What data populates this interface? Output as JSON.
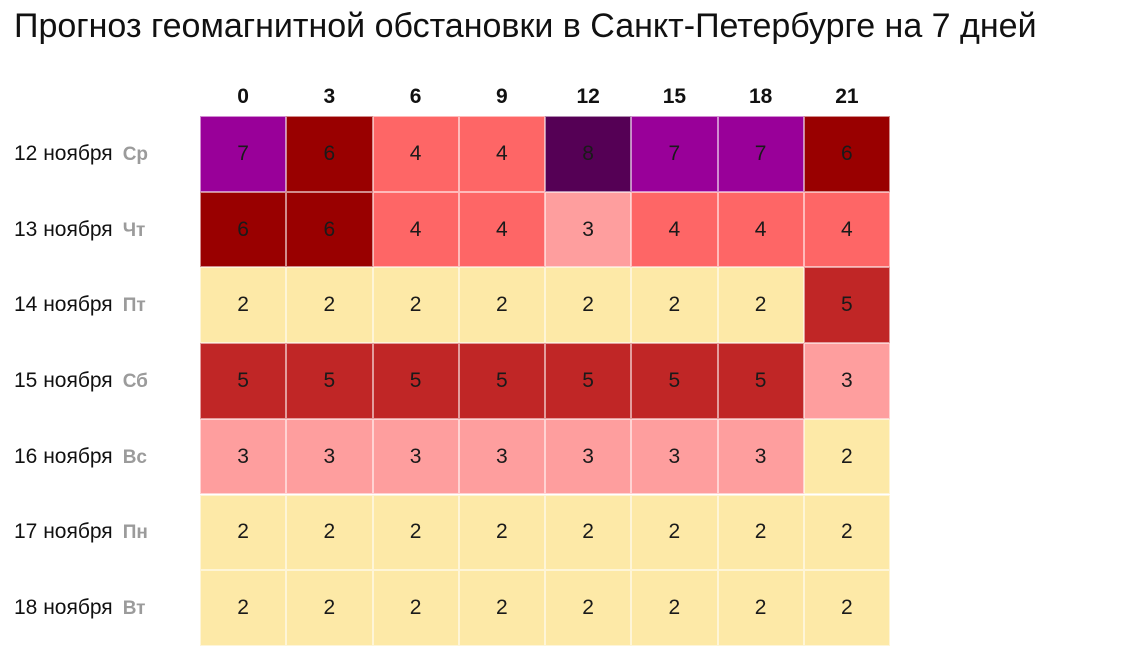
{
  "title": "Прогноз геомагнитной обстановки в Санкт-Петербурге на 7 дней",
  "chart_data": {
    "type": "heatmap",
    "title": "Прогноз геомагнитной обстановки в Санкт-Петербурге на 7 дней",
    "x_categories": [
      "0",
      "3",
      "6",
      "9",
      "12",
      "15",
      "18",
      "21"
    ],
    "rows": [
      {
        "date": "12 ноября",
        "day": "Ср",
        "values": [
          7,
          6,
          4,
          4,
          8,
          7,
          7,
          6
        ]
      },
      {
        "date": "13 ноября",
        "day": "Чт",
        "values": [
          6,
          6,
          4,
          4,
          3,
          4,
          4,
          4
        ]
      },
      {
        "date": "14 ноября",
        "day": "Пт",
        "values": [
          2,
          2,
          2,
          2,
          2,
          2,
          2,
          5
        ]
      },
      {
        "date": "15 ноября",
        "day": "Сб",
        "values": [
          5,
          5,
          5,
          5,
          5,
          5,
          5,
          3
        ]
      },
      {
        "date": "16 ноября",
        "day": "Вс",
        "values": [
          3,
          3,
          3,
          3,
          3,
          3,
          3,
          2
        ]
      },
      {
        "date": "17 ноября",
        "day": "Пн",
        "values": [
          2,
          2,
          2,
          2,
          2,
          2,
          2,
          2
        ]
      },
      {
        "date": "18 ноября",
        "day": "Вт",
        "values": [
          2,
          2,
          2,
          2,
          2,
          2,
          2,
          2
        ]
      }
    ],
    "color_scale": {
      "2": "#fde9a7",
      "3": "#fe9e9e",
      "4": "#fe6666",
      "5": "#c02626",
      "6": "#990000",
      "7": "#990099",
      "8": "#550055"
    }
  }
}
